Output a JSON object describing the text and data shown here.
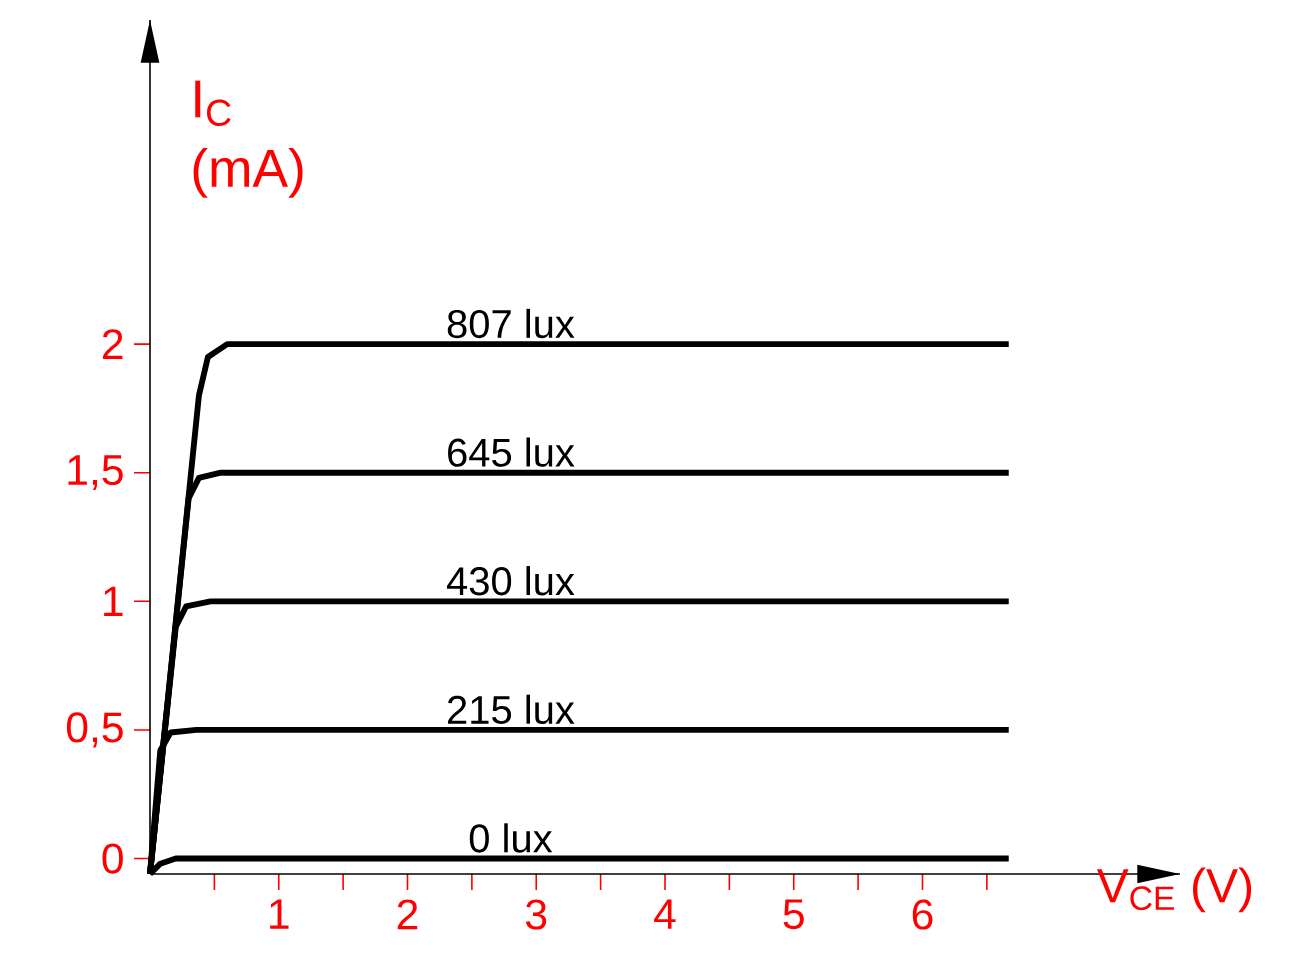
{
  "chart_data": {
    "type": "line",
    "xlabel": "V$_{CE}$ (V)",
    "ylabel": "I$_{C}$ (mA)",
    "xlim": [
      0,
      8.0
    ],
    "ylim": [
      -0.06,
      3.26
    ],
    "xticks": [
      {
        "value": 0.5,
        "label": null
      },
      1,
      {
        "value": 1.5,
        "label": null
      },
      2,
      {
        "value": 2.5,
        "label": null
      },
      3,
      {
        "value": 3.5,
        "label": null
      },
      4,
      {
        "value": 4.5,
        "label": null
      },
      5,
      {
        "value": 5.5,
        "label": null
      },
      6,
      {
        "value": 6.5,
        "label": null
      }
    ],
    "yticks": [
      0,
      {
        "value": 0.5,
        "label": "0,5"
      },
      1,
      {
        "value": 1.5,
        "label": "1,5"
      },
      2
    ],
    "marker": "none",
    "line_style": "solid",
    "series": [
      {
        "name": "807 lux",
        "color": "#000000",
        "x": [
          0,
          0.38,
          0.45,
          0.6,
          6.67
        ],
        "values": [
          -0.06,
          1.8,
          1.95,
          2,
          2
        ]
      },
      {
        "name": "645 lux",
        "color": "#000000",
        "x": [
          0,
          0.3,
          0.38,
          0.55,
          6.67
        ],
        "values": [
          -0.06,
          1.4,
          1.48,
          1.5,
          1.5
        ]
      },
      {
        "name": "430 lux",
        "color": "#000000",
        "x": [
          0,
          0.2,
          0.28,
          0.47,
          6.67
        ],
        "values": [
          -0.06,
          0.9,
          0.98,
          1,
          1
        ]
      },
      {
        "name": "215 lux",
        "color": "#000000",
        "x": [
          0,
          0.08,
          0.16,
          0.36,
          6.67
        ],
        "values": [
          -0.06,
          0.42,
          0.49,
          0.5,
          0.5
        ]
      },
      {
        "name": "0 lux",
        "color": "#000000",
        "x": [
          0,
          0.08,
          0.2,
          6.67
        ],
        "values": [
          -0.06,
          -0.02,
          0,
          0
        ]
      }
    ]
  }
}
